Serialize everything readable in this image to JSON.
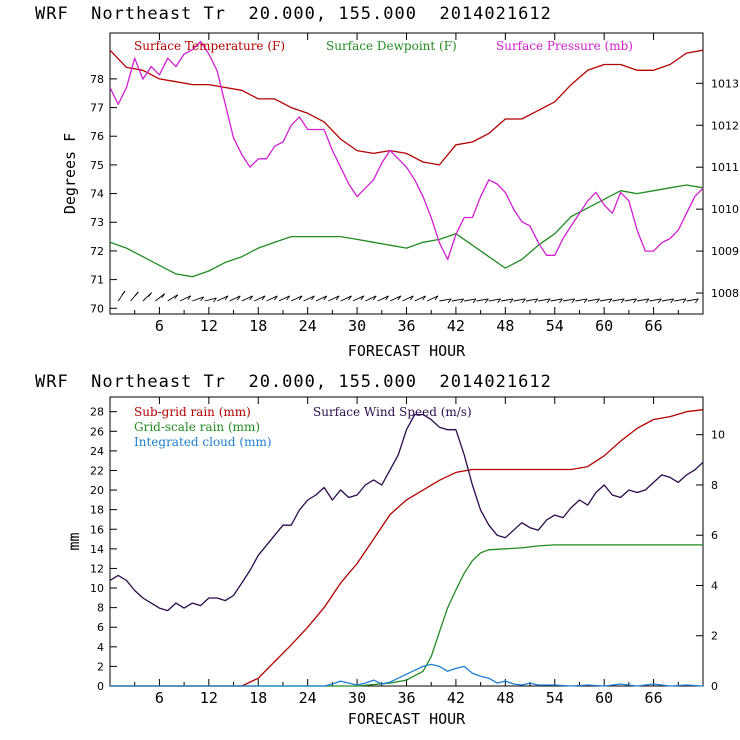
{
  "chart_data": [
    {
      "type": "line",
      "title": "WRF  Northeast Tr  20.000, 155.000  2014021612",
      "xlabel": "FORECAST HOUR",
      "ylabel": "Degrees F",
      "x_ticks": [
        "6",
        "12",
        "18",
        "24",
        "30",
        "36",
        "42",
        "48",
        "54",
        "60",
        "66"
      ],
      "y_ticks": [
        "70",
        "71",
        "72",
        "73",
        "74",
        "75",
        "76",
        "77",
        "78"
      ],
      "y2_ticks": [
        "1008",
        "1009",
        "1010",
        "1011",
        "1012",
        "1013"
      ],
      "xlim": [
        0,
        72
      ],
      "ylim": [
        69.8,
        79.6
      ],
      "y2lim": [
        1007.5,
        1014.2
      ],
      "legend": [
        {
          "label": "Surface Temperature (F)",
          "color": "#b30000"
        },
        {
          "label": "Surface Dewpoint (F)",
          "color": "#228b22"
        },
        {
          "label": "Surface Pressure (mb)",
          "color": "#d020d0"
        }
      ],
      "series": [
        {
          "name": "Surface Temperature (F)",
          "axis": "left",
          "color": "#b30000",
          "x": [
            0,
            2,
            4,
            6,
            8,
            10,
            12,
            14,
            16,
            18,
            20,
            22,
            24,
            26,
            28,
            30,
            32,
            34,
            36,
            38,
            40,
            42,
            44,
            46,
            48,
            50,
            52,
            54,
            56,
            58,
            60,
            62,
            64,
            66,
            68,
            70,
            72
          ],
          "values": [
            79.0,
            78.4,
            78.3,
            78.0,
            77.9,
            77.8,
            77.8,
            77.7,
            77.6,
            77.3,
            77.3,
            77.0,
            76.8,
            76.5,
            75.9,
            75.5,
            75.4,
            75.5,
            75.4,
            75.1,
            75.0,
            75.7,
            75.8,
            76.1,
            76.6,
            76.6,
            76.9,
            77.2,
            77.8,
            78.3,
            78.5,
            78.5,
            78.3,
            78.3,
            78.5,
            78.9,
            79.0
          ]
        },
        {
          "name": "Surface Dewpoint (F)",
          "axis": "left",
          "color": "#228b22",
          "x": [
            0,
            2,
            4,
            6,
            8,
            10,
            12,
            14,
            16,
            18,
            20,
            22,
            24,
            26,
            28,
            30,
            32,
            34,
            36,
            38,
            40,
            42,
            44,
            46,
            48,
            50,
            52,
            54,
            56,
            58,
            60,
            62,
            64,
            66,
            68,
            70,
            72
          ],
          "values": [
            72.3,
            72.1,
            71.8,
            71.5,
            71.2,
            71.1,
            71.3,
            71.6,
            71.8,
            72.1,
            72.3,
            72.5,
            72.5,
            72.5,
            72.5,
            72.4,
            72.3,
            72.2,
            72.1,
            72.3,
            72.4,
            72.6,
            72.2,
            71.8,
            71.4,
            71.7,
            72.2,
            72.6,
            73.2,
            73.5,
            73.8,
            74.1,
            74.0,
            74.1,
            74.2,
            74.3,
            74.2
          ]
        },
        {
          "name": "Surface Pressure (mb)",
          "axis": "right",
          "color": "#d020d0",
          "x": [
            0,
            1,
            2,
            3,
            4,
            5,
            6,
            7,
            8,
            9,
            10,
            11,
            12,
            13,
            14,
            15,
            16,
            17,
            18,
            19,
            20,
            21,
            22,
            23,
            24,
            25,
            26,
            27,
            28,
            29,
            30,
            31,
            32,
            33,
            34,
            35,
            36,
            37,
            38,
            39,
            40,
            41,
            42,
            43,
            44,
            45,
            46,
            47,
            48,
            49,
            50,
            51,
            52,
            53,
            54,
            55,
            56,
            57,
            58,
            59,
            60,
            61,
            62,
            63,
            64,
            65,
            66,
            67,
            68,
            69,
            70,
            71,
            72
          ],
          "values": [
            1012.9,
            1012.5,
            1012.9,
            1013.6,
            1013.1,
            1013.4,
            1013.2,
            1013.6,
            1013.4,
            1013.7,
            1013.8,
            1014.0,
            1013.7,
            1013.3,
            1012.5,
            1011.7,
            1011.3,
            1011.0,
            1011.2,
            1011.2,
            1011.5,
            1011.6,
            1012.0,
            1012.2,
            1011.9,
            1011.9,
            1011.9,
            1011.4,
            1011.0,
            1010.6,
            1010.3,
            1010.5,
            1010.7,
            1011.1,
            1011.4,
            1011.2,
            1011.0,
            1010.7,
            1010.3,
            1009.8,
            1009.2,
            1008.8,
            1009.4,
            1009.8,
            1009.8,
            1010.3,
            1010.7,
            1010.6,
            1010.4,
            1010.0,
            1009.7,
            1009.6,
            1009.2,
            1008.9,
            1008.9,
            1009.3,
            1009.6,
            1009.9,
            1010.2,
            1010.4,
            1010.1,
            1009.9,
            1010.4,
            1010.2,
            1009.5,
            1009.0,
            1009.0,
            1009.2,
            1009.3,
            1009.5,
            1009.9,
            1010.3,
            1010.5
          ]
        }
      ]
    },
    {
      "type": "line",
      "title": "WRF  Northeast Tr  20.000, 155.000  2014021612",
      "xlabel": "FORECAST HOUR",
      "ylabel": "mm",
      "x_ticks": [
        "6",
        "12",
        "18",
        "24",
        "30",
        "36",
        "42",
        "48",
        "54",
        "60",
        "66"
      ],
      "y_ticks": [
        "0",
        "2",
        "4",
        "6",
        "8",
        "10",
        "12",
        "14",
        "16",
        "18",
        "20",
        "22",
        "24",
        "26",
        "28"
      ],
      "y2_ticks": [
        "0",
        "2",
        "4",
        "6",
        "8",
        "10"
      ],
      "xlim": [
        0,
        72
      ],
      "ylim": [
        0,
        29.5
      ],
      "y2lim": [
        0,
        11.5
      ],
      "legend": [
        {
          "label": "Sub-grid rain (mm)",
          "color": "#b30000"
        },
        {
          "label": "Grid-scale rain (mm)",
          "color": "#228b22"
        },
        {
          "label": "Integrated cloud (mm)",
          "color": "#1e7fd0"
        },
        {
          "label": "Surface Wind Speed (m/s)",
          "color": "#2b0a4a"
        }
      ],
      "series": [
        {
          "name": "Sub-grid rain (mm)",
          "axis": "left",
          "color": "#b30000",
          "x": [
            0,
            16,
            18,
            20,
            22,
            24,
            26,
            28,
            30,
            32,
            34,
            36,
            38,
            40,
            42,
            44,
            46,
            48,
            50,
            52,
            54,
            56,
            58,
            60,
            62,
            64,
            66,
            68,
            70,
            72
          ],
          "values": [
            0,
            0,
            0.8,
            2.5,
            4.2,
            6.0,
            8.0,
            10.5,
            12.5,
            15.0,
            17.5,
            19.0,
            20.0,
            21.0,
            21.8,
            22.1,
            22.1,
            22.1,
            22.1,
            22.1,
            22.1,
            22.1,
            22.4,
            23.5,
            25.0,
            26.3,
            27.2,
            27.5,
            28.0,
            28.2
          ]
        },
        {
          "name": "Grid-scale rain (mm)",
          "axis": "left",
          "color": "#228b22",
          "x": [
            0,
            30,
            34,
            36,
            38,
            39,
            40,
            41,
            42,
            43,
            44,
            45,
            46,
            48,
            50,
            52,
            54,
            56,
            60,
            64,
            68,
            72
          ],
          "values": [
            0,
            0,
            0.3,
            0.6,
            1.5,
            3.0,
            5.5,
            8.0,
            9.8,
            11.5,
            12.8,
            13.6,
            13.9,
            14.0,
            14.1,
            14.3,
            14.4,
            14.4,
            14.4,
            14.4,
            14.4,
            14.4
          ]
        },
        {
          "name": "Integrated cloud (mm)",
          "axis": "left",
          "color": "#1e7fd0",
          "x": [
            0,
            26,
            27,
            28,
            29,
            30,
            31,
            32,
            33,
            34,
            35,
            36,
            37,
            38,
            39,
            40,
            41,
            42,
            43,
            44,
            45,
            46,
            47,
            48,
            49,
            50,
            51,
            52,
            54,
            56,
            58,
            60,
            62,
            64,
            66,
            68,
            70,
            72
          ],
          "values": [
            0,
            0,
            0.2,
            0.5,
            0.3,
            0.1,
            0.3,
            0.6,
            0.2,
            0.4,
            0.8,
            1.2,
            1.6,
            2.0,
            2.2,
            2.0,
            1.5,
            1.8,
            2.0,
            1.3,
            1.0,
            0.8,
            0.3,
            0.5,
            0.2,
            0.1,
            0.3,
            0.1,
            0.1,
            0,
            0.1,
            0,
            0.2,
            0,
            0.2,
            0,
            0.1,
            0
          ]
        },
        {
          "name": "Surface Wind Speed (m/s)",
          "axis": "right",
          "color": "#2b0a4a",
          "x": [
            0,
            1,
            2,
            3,
            4,
            5,
            6,
            7,
            8,
            9,
            10,
            11,
            12,
            13,
            14,
            15,
            16,
            17,
            18,
            19,
            20,
            21,
            22,
            23,
            24,
            25,
            26,
            27,
            28,
            29,
            30,
            31,
            32,
            33,
            34,
            35,
            36,
            37,
            38,
            39,
            40,
            41,
            42,
            43,
            44,
            45,
            46,
            47,
            48,
            49,
            50,
            51,
            52,
            53,
            54,
            55,
            56,
            57,
            58,
            59,
            60,
            61,
            62,
            63,
            64,
            65,
            66,
            67,
            68,
            69,
            70,
            71,
            72
          ],
          "values": [
            4.2,
            4.4,
            4.2,
            3.8,
            3.5,
            3.3,
            3.1,
            3.0,
            3.3,
            3.1,
            3.3,
            3.2,
            3.5,
            3.5,
            3.4,
            3.6,
            4.1,
            4.6,
            5.2,
            5.6,
            6.0,
            6.4,
            6.4,
            7.0,
            7.4,
            7.6,
            7.9,
            7.4,
            7.8,
            7.5,
            7.6,
            8.0,
            8.2,
            8.0,
            8.6,
            9.2,
            10.2,
            10.8,
            10.8,
            10.6,
            10.3,
            10.2,
            10.2,
            9.2,
            8.0,
            7.0,
            6.4,
            6.0,
            5.9,
            6.2,
            6.5,
            6.3,
            6.2,
            6.6,
            6.8,
            6.7,
            7.1,
            7.4,
            7.2,
            7.7,
            8.0,
            7.6,
            7.5,
            7.8,
            7.7,
            7.8,
            8.1,
            8.4,
            8.3,
            8.1,
            8.4,
            8.6,
            8.9
          ]
        }
      ]
    }
  ]
}
